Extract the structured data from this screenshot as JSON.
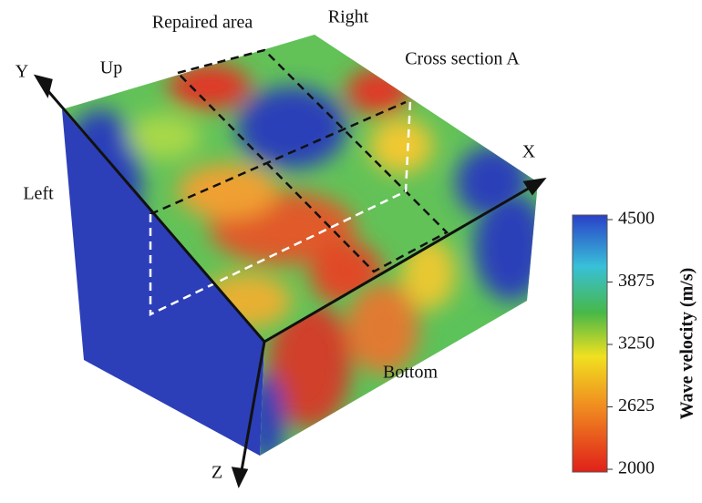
{
  "labels": {
    "repaired": "Repaired area",
    "right": "Right",
    "up": "Up",
    "cross": "Cross section A",
    "left": "Left",
    "bottom": "Bottom",
    "x": "X",
    "y": "Y",
    "z": "Z"
  },
  "colorbar": {
    "title": "Wave velocity (m/s)",
    "lim": [
      2000,
      4500
    ],
    "ticks": [
      4500,
      3875,
      3250,
      2625,
      2000
    ]
  }
}
